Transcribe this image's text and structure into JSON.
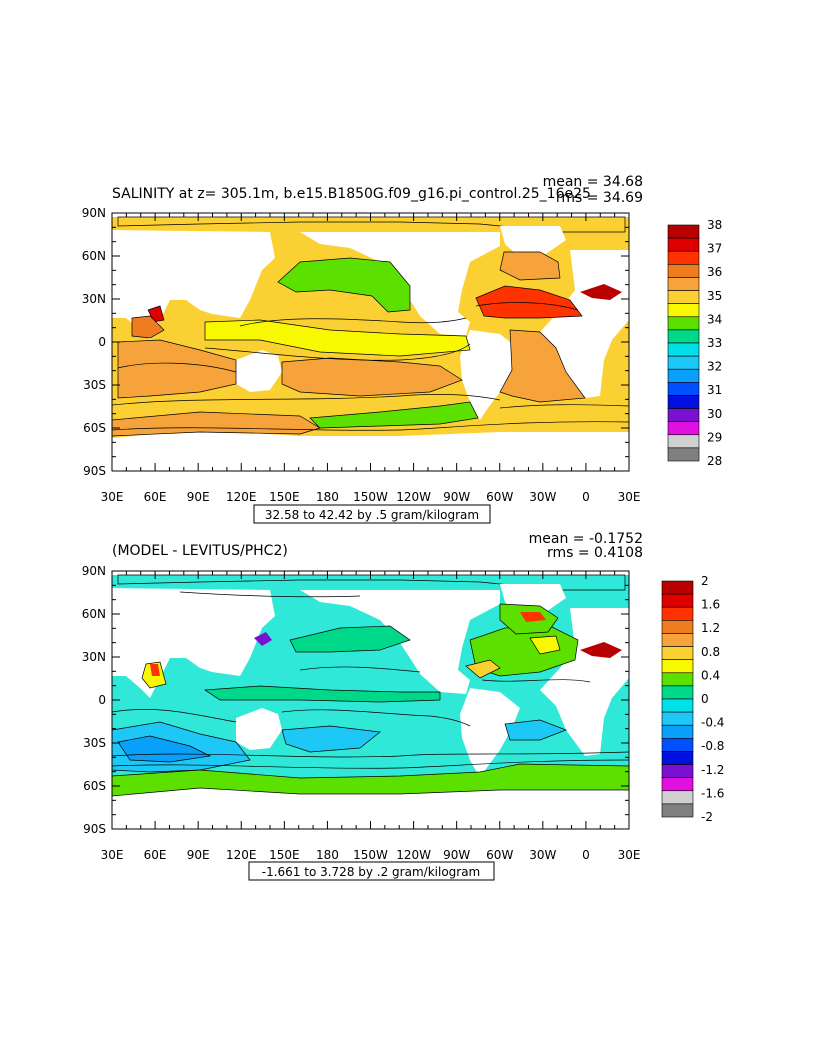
{
  "chart_data": [
    {
      "type": "heatmap",
      "title": "SALINITY at z= 305.1m, b.e15.B1850G.f09_g16.pi_control.25_16e25",
      "stats": [
        "mean = 34.68",
        "rms = 34.69"
      ],
      "range_label": "32.58 to 42.42 by .5 gram/kilogram",
      "x_ticks": [
        "30E",
        "60E",
        "90E",
        "120E",
        "150E",
        "180",
        "150W",
        "120W",
        "90W",
        "60W",
        "30W",
        "0",
        "30E"
      ],
      "y_ticks": [
        "90N",
        "60N",
        "30N",
        "0",
        "30S",
        "60S",
        "90S"
      ],
      "xlim": [
        30,
        390
      ],
      "ylim": [
        -90,
        90
      ],
      "colorbar": {
        "labels": [
          "38",
          "37",
          "36",
          "35",
          "34",
          "33",
          "32",
          "31",
          "30",
          "29",
          "28"
        ],
        "colors": [
          "#b80000",
          "#e00000",
          "#ff3300",
          "#f07c20",
          "#f5a33a",
          "#fbd033",
          "#f8f800",
          "#5ce000",
          "#00d889",
          "#00e0e8",
          "#1ec8f6",
          "#08a0f8",
          "#0050ff",
          "#0010e0",
          "#7a10d0",
          "#e010e0",
          "#d0d0d0",
          "#808080"
        ]
      },
      "palette": {
        "ocean": "#fbd033",
        "outline": "#000000"
      }
    },
    {
      "type": "heatmap",
      "title": "(MODEL - LEVITUS/PHC2)",
      "stats": [
        "mean = -0.1752",
        "rms = 0.4108"
      ],
      "range_label": "-1.661 to 3.728 by .2 gram/kilogram",
      "x_ticks": [
        "30E",
        "60E",
        "90E",
        "120E",
        "150E",
        "180",
        "150W",
        "120W",
        "90W",
        "60W",
        "30W",
        "0",
        "30E"
      ],
      "y_ticks": [
        "90N",
        "60N",
        "30N",
        "0",
        "30S",
        "60S",
        "90S"
      ],
      "xlim": [
        30,
        390
      ],
      "ylim": [
        -90,
        90
      ],
      "colorbar": {
        "labels": [
          "2",
          "1.6",
          "1.2",
          "0.8",
          "0.4",
          "0",
          "-0.4",
          "-0.8",
          "-1.2",
          "-1.6",
          "-2"
        ],
        "colors": [
          "#b80000",
          "#e00000",
          "#ff3300",
          "#f07c20",
          "#f5a33a",
          "#fbd033",
          "#f8f800",
          "#5ce000",
          "#00d889",
          "#00e0e8",
          "#1ec8f6",
          "#08a0f8",
          "#0050ff",
          "#0010e0",
          "#7a10d0",
          "#e010e0",
          "#d0d0d0",
          "#808080"
        ]
      },
      "palette": {
        "ocean": "#30e8d8",
        "outline": "#000000"
      }
    }
  ]
}
